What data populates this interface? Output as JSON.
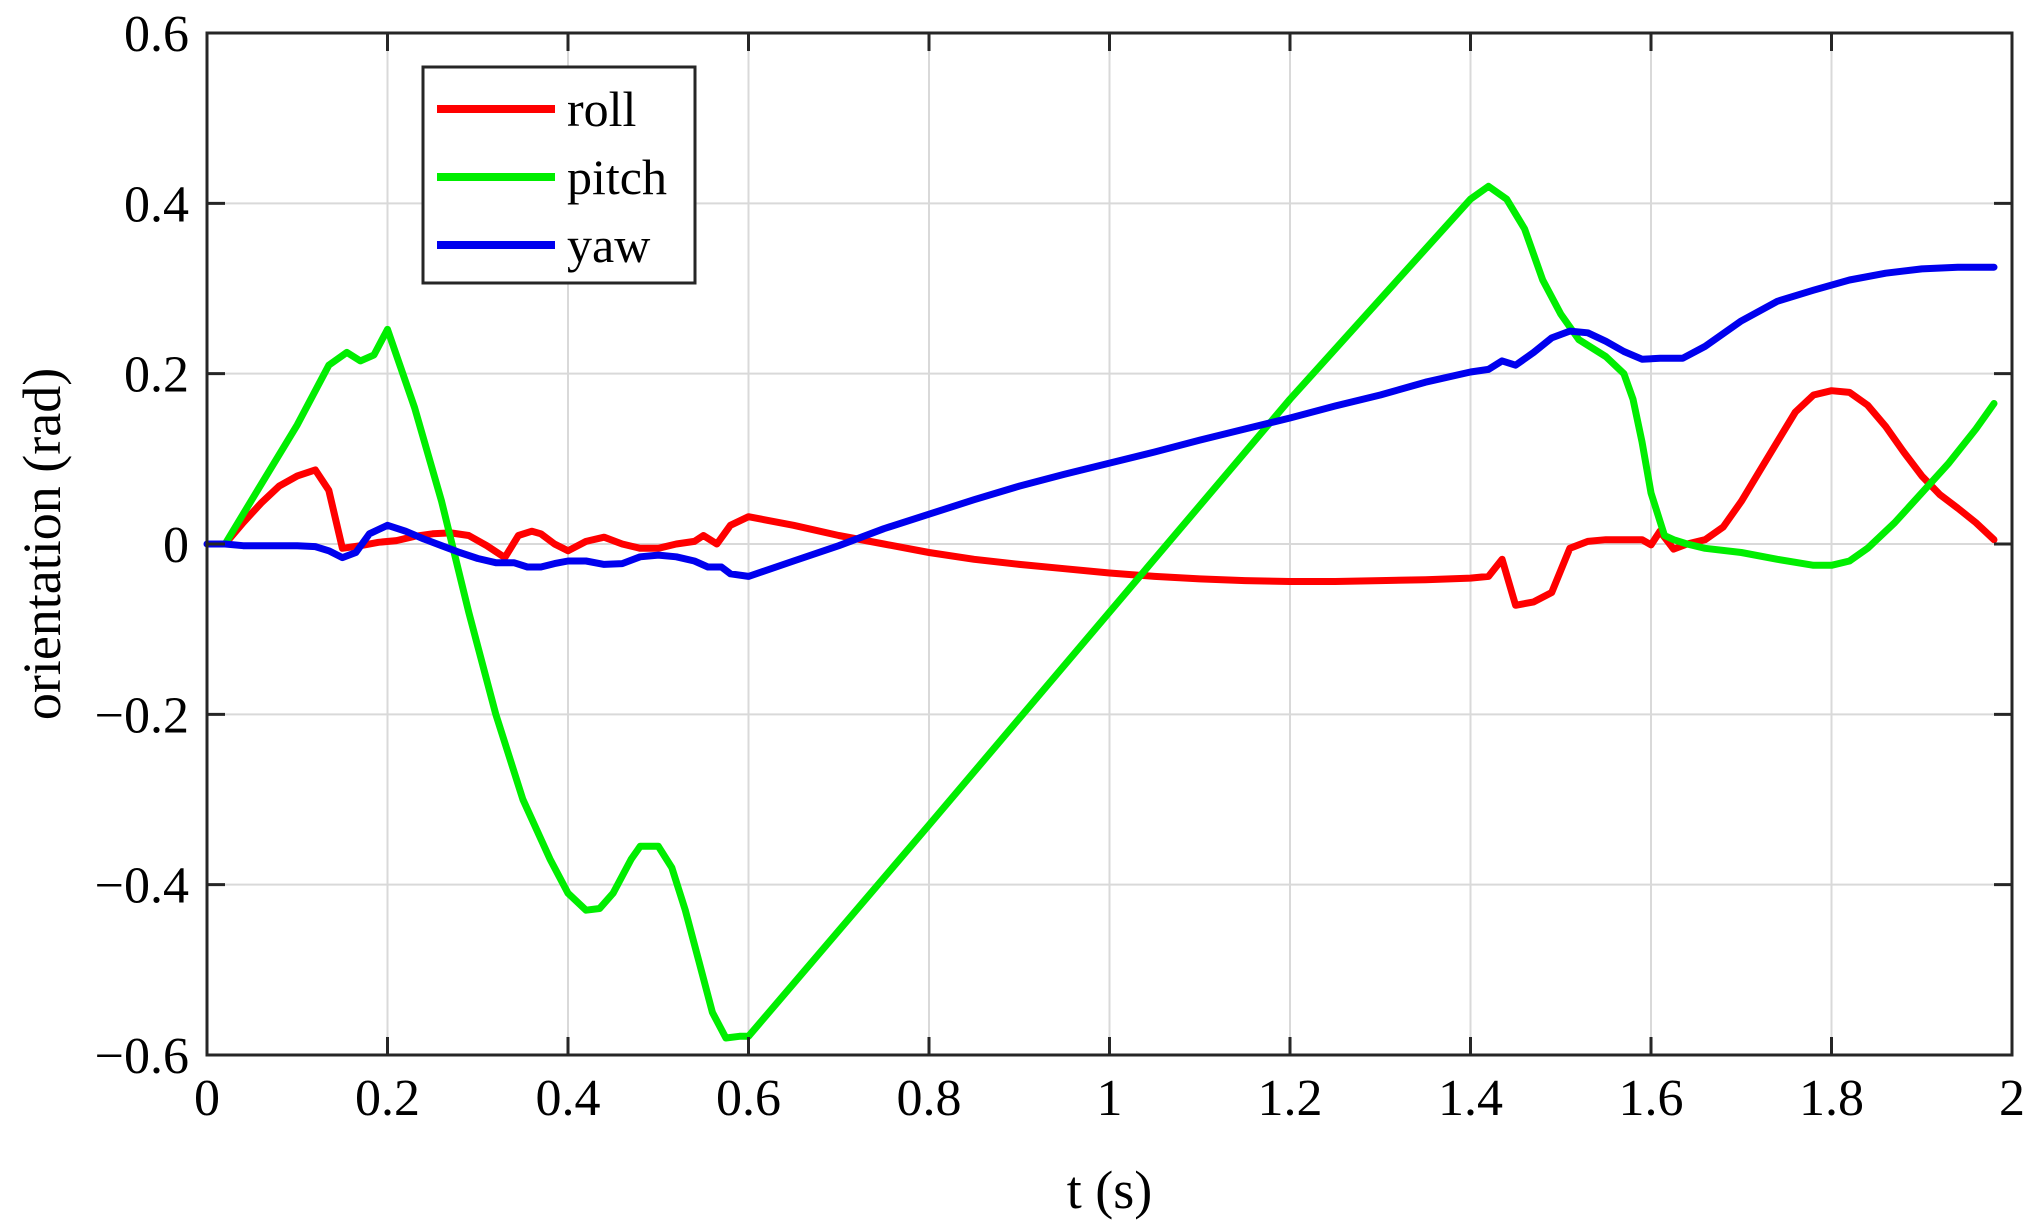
{
  "chart_data": {
    "type": "line",
    "xlabel": "t (s)",
    "ylabel": "orientation (rad)",
    "xlim": [
      0,
      2
    ],
    "ylim": [
      -0.6,
      0.6
    ],
    "xticks": [
      0,
      0.2,
      0.4,
      0.6,
      0.8,
      1,
      1.2,
      1.4,
      1.6,
      1.8,
      2
    ],
    "yticks": [
      -0.6,
      -0.4,
      -0.2,
      0,
      0.2,
      0.4,
      0.6
    ],
    "xtick_labels": [
      "0",
      "0.2",
      "0.4",
      "0.6",
      "0.8",
      "1",
      "1.2",
      "1.4",
      "1.6",
      "1.8",
      "2"
    ],
    "ytick_labels": [
      "−0.6",
      "−0.4",
      "−0.2",
      "0",
      "0.2",
      "0.4",
      "0.6"
    ],
    "grid": true,
    "legend_position": "top-left",
    "series": [
      {
        "name": "roll",
        "color": "#ff0000",
        "x": [
          0.02,
          0.04,
          0.06,
          0.08,
          0.1,
          0.12,
          0.135,
          0.15,
          0.17,
          0.19,
          0.21,
          0.23,
          0.25,
          0.27,
          0.29,
          0.31,
          0.33,
          0.345,
          0.36,
          0.37,
          0.385,
          0.4,
          0.42,
          0.44,
          0.46,
          0.48,
          0.5,
          0.52,
          0.54,
          0.55,
          0.565,
          0.58,
          0.6,
          0.65,
          0.7,
          0.75,
          0.8,
          0.85,
          0.9,
          0.95,
          1.0,
          1.05,
          1.1,
          1.15,
          1.2,
          1.25,
          1.3,
          1.35,
          1.4,
          1.42,
          1.435,
          1.45,
          1.47,
          1.49,
          1.51,
          1.53,
          1.55,
          1.57,
          1.59,
          1.6,
          1.61,
          1.625,
          1.64,
          1.66,
          1.68,
          1.7,
          1.72,
          1.74,
          1.76,
          1.78,
          1.8,
          1.82,
          1.84,
          1.86,
          1.88,
          1.9,
          1.92,
          1.94,
          1.96,
          1.98
        ],
        "y": [
          0.0,
          0.025,
          0.048,
          0.068,
          0.08,
          0.087,
          0.063,
          -0.005,
          -0.002,
          0.002,
          0.004,
          0.009,
          0.012,
          0.013,
          0.01,
          -0.002,
          -0.016,
          0.01,
          0.015,
          0.012,
          0.0,
          -0.008,
          0.003,
          0.008,
          0.0,
          -0.005,
          -0.005,
          0.0,
          0.003,
          0.01,
          0.0,
          0.022,
          0.032,
          0.022,
          0.01,
          0.0,
          -0.01,
          -0.018,
          -0.024,
          -0.029,
          -0.034,
          -0.038,
          -0.041,
          -0.043,
          -0.044,
          -0.044,
          -0.043,
          -0.042,
          -0.04,
          -0.038,
          -0.018,
          -0.072,
          -0.068,
          -0.057,
          -0.005,
          0.003,
          0.005,
          0.005,
          0.005,
          -0.001,
          0.015,
          -0.006,
          0.0,
          0.005,
          0.02,
          0.05,
          0.085,
          0.12,
          0.155,
          0.175,
          0.18,
          0.178,
          0.163,
          0.138,
          0.108,
          0.08,
          0.058,
          0.042,
          0.025,
          0.005
        ]
      },
      {
        "name": "pitch",
        "color": "#00ee00",
        "x": [
          0.02,
          0.06,
          0.1,
          0.135,
          0.155,
          0.17,
          0.185,
          0.2,
          0.23,
          0.26,
          0.29,
          0.32,
          0.35,
          0.38,
          0.4,
          0.42,
          0.435,
          0.45,
          0.47,
          0.48,
          0.5,
          0.515,
          0.53,
          0.545,
          0.56,
          0.575,
          0.59,
          0.6,
          0.8,
          1.0,
          1.2,
          1.4,
          1.42,
          1.44,
          1.46,
          1.48,
          1.5,
          1.52,
          1.55,
          1.57,
          1.58,
          1.59,
          1.6,
          1.615,
          1.625,
          1.64,
          1.66,
          1.7,
          1.74,
          1.78,
          1.8,
          1.82,
          1.84,
          1.87,
          1.9,
          1.93,
          1.96,
          1.98
        ],
        "y": [
          0.0,
          0.07,
          0.14,
          0.21,
          0.225,
          0.215,
          0.222,
          0.252,
          0.16,
          0.05,
          -0.08,
          -0.2,
          -0.3,
          -0.37,
          -0.41,
          -0.43,
          -0.428,
          -0.41,
          -0.37,
          -0.355,
          -0.355,
          -0.38,
          -0.43,
          -0.49,
          -0.55,
          -0.58,
          -0.578,
          -0.578,
          -0.33,
          -0.08,
          0.17,
          0.405,
          0.42,
          0.405,
          0.37,
          0.31,
          0.27,
          0.24,
          0.22,
          0.2,
          0.17,
          0.12,
          0.06,
          0.01,
          0.005,
          0.0,
          -0.005,
          -0.01,
          -0.018,
          -0.025,
          -0.025,
          -0.02,
          -0.005,
          0.025,
          0.06,
          0.095,
          0.135,
          0.165
        ]
      },
      {
        "name": "yaw",
        "color": "#0000ee",
        "x": [
          0.0,
          0.02,
          0.04,
          0.06,
          0.08,
          0.1,
          0.12,
          0.135,
          0.15,
          0.165,
          0.18,
          0.2,
          0.22,
          0.24,
          0.26,
          0.28,
          0.3,
          0.32,
          0.34,
          0.355,
          0.37,
          0.385,
          0.4,
          0.42,
          0.44,
          0.46,
          0.48,
          0.5,
          0.52,
          0.54,
          0.555,
          0.57,
          0.58,
          0.6,
          0.65,
          0.7,
          0.75,
          0.8,
          0.85,
          0.9,
          0.95,
          1.0,
          1.05,
          1.1,
          1.15,
          1.2,
          1.25,
          1.3,
          1.35,
          1.4,
          1.42,
          1.435,
          1.45,
          1.47,
          1.49,
          1.51,
          1.53,
          1.55,
          1.57,
          1.59,
          1.61,
          1.635,
          1.66,
          1.7,
          1.74,
          1.78,
          1.82,
          1.86,
          1.9,
          1.94,
          1.98
        ],
        "y": [
          0.0,
          0.0,
          -0.002,
          -0.002,
          -0.002,
          -0.002,
          -0.003,
          -0.008,
          -0.016,
          -0.01,
          0.012,
          0.022,
          0.015,
          0.006,
          -0.002,
          -0.01,
          -0.017,
          -0.022,
          -0.022,
          -0.027,
          -0.027,
          -0.023,
          -0.02,
          -0.02,
          -0.024,
          -0.023,
          -0.015,
          -0.013,
          -0.015,
          -0.02,
          -0.027,
          -0.027,
          -0.035,
          -0.038,
          -0.02,
          -0.002,
          0.018,
          0.035,
          0.052,
          0.068,
          0.082,
          0.095,
          0.108,
          0.122,
          0.135,
          0.148,
          0.162,
          0.175,
          0.19,
          0.202,
          0.205,
          0.215,
          0.21,
          0.225,
          0.242,
          0.25,
          0.248,
          0.238,
          0.226,
          0.217,
          0.218,
          0.218,
          0.232,
          0.262,
          0.285,
          0.298,
          0.31,
          0.318,
          0.323,
          0.325,
          0.325
        ]
      }
    ]
  }
}
